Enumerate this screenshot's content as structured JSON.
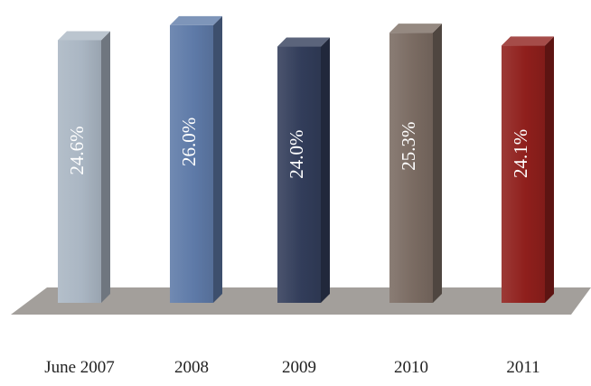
{
  "chart_data": {
    "type": "bar",
    "style": "3d-column",
    "title": "",
    "xlabel": "",
    "ylabel": "",
    "categories": [
      "June 2007",
      "2008",
      "2009",
      "2010",
      "2011"
    ],
    "values": [
      24.6,
      26.0,
      24.0,
      25.3,
      24.1
    ],
    "value_labels": [
      "24.6%",
      "26.0%",
      "24.0%",
      "25.3%",
      "24.1%"
    ],
    "ylim": [
      0,
      26.5
    ],
    "grid": false,
    "legend": "none",
    "data_label_orientation": "vertical",
    "colors": {
      "bars": [
        "#aab6c3",
        "#5e7aa8",
        "#323d5a",
        "#7a6b62",
        "#8f1f1c"
      ],
      "floor": "#a39f9b"
    }
  }
}
